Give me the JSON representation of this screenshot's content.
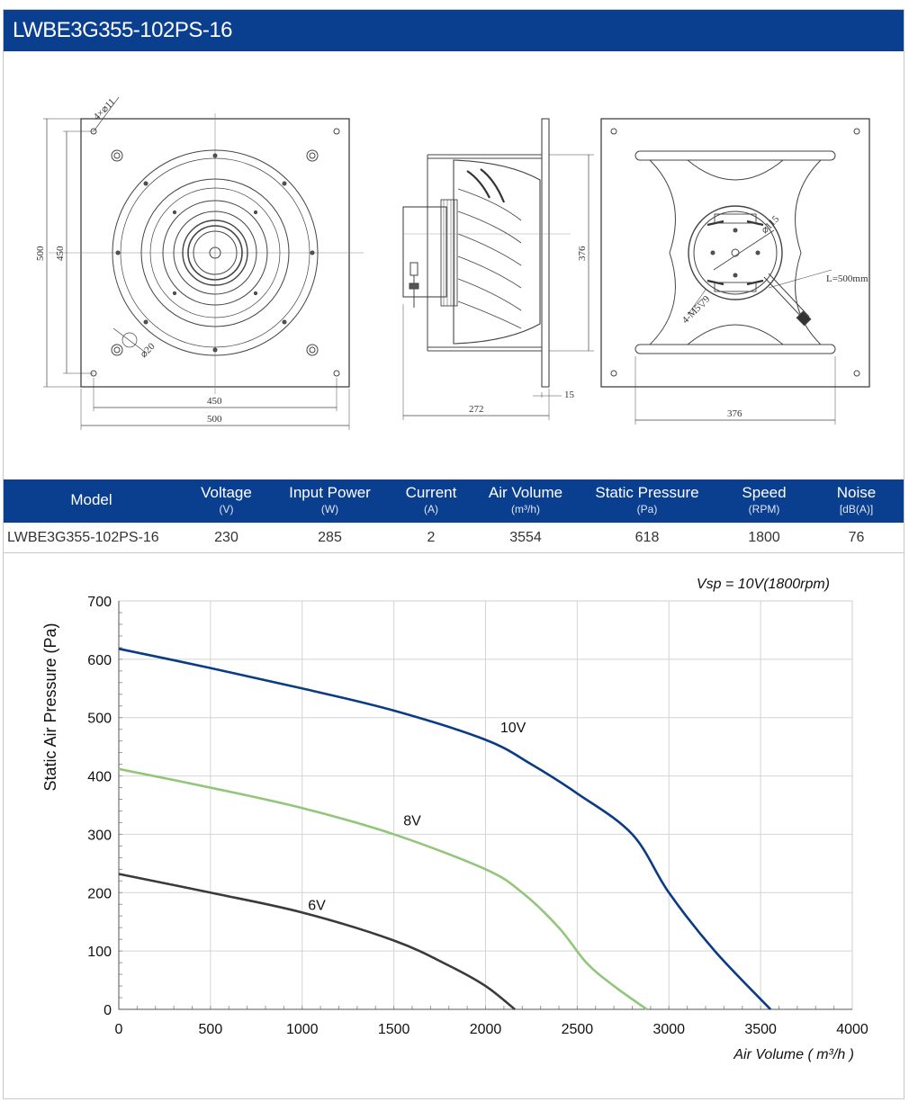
{
  "header": {
    "title": "LWBE3G355-102PS-16"
  },
  "drawing": {
    "front": {
      "hole_callout": "4×⌀11",
      "hub_callout": "⌀20",
      "dim_500_v": "500",
      "dim_450_v": "450",
      "dim_450_h": "450",
      "dim_500_h": "500"
    },
    "side": {
      "dim_272": "272",
      "dim_15": "15",
      "dim_376_v": "376"
    },
    "rear": {
      "dim_115": "⌀115",
      "cable": "L=500mm",
      "thread": "4-M5▽9",
      "dim_376_h": "376"
    }
  },
  "spec_table": {
    "headers": [
      {
        "label": "Model",
        "unit": ""
      },
      {
        "label": "Voltage",
        "unit": "(V)"
      },
      {
        "label": "Input Power",
        "unit": "(W)"
      },
      {
        "label": "Current",
        "unit": "(A)"
      },
      {
        "label": "Air Volume",
        "unit": "(m³/h)"
      },
      {
        "label": "Static Pressure",
        "unit": "(Pa)"
      },
      {
        "label": "Speed",
        "unit": "(RPM)"
      },
      {
        "label": "Noise",
        "unit": "[dB(A)]"
      }
    ],
    "row": [
      "LWBE3G355-102PS-16",
      "230",
      "285",
      "2",
      "3554",
      "618",
      "1800",
      "76"
    ]
  },
  "chart_data": {
    "type": "line",
    "title": "Vsp = 10V(1800rpm)",
    "xlabel": "Air Volume ( m³/h )",
    "ylabel": "Static Air Pressure  (Pa)",
    "xlim": [
      0,
      4000
    ],
    "ylim": [
      0,
      700
    ],
    "xticks": [
      0,
      500,
      1000,
      1500,
      2000,
      2500,
      3000,
      3500,
      4000
    ],
    "yticks": [
      0,
      100,
      200,
      300,
      400,
      500,
      600,
      700
    ],
    "grid": true,
    "series": [
      {
        "name": "10V",
        "color": "#0c3b86",
        "x": [
          0,
          500,
          1000,
          1500,
          2000,
          2250,
          2500,
          2800,
          3000,
          3250,
          3554
        ],
        "y": [
          618,
          585,
          550,
          512,
          462,
          420,
          370,
          300,
          200,
          100,
          0
        ]
      },
      {
        "name": "8V",
        "color": "#92c67a",
        "x": [
          0,
          500,
          1000,
          1500,
          2000,
          2200,
          2400,
          2550,
          2700,
          2880
        ],
        "y": [
          412,
          380,
          345,
          300,
          240,
          200,
          140,
          80,
          40,
          0
        ]
      },
      {
        "name": "6V",
        "color": "#3a3a3a",
        "x": [
          0,
          500,
          1000,
          1500,
          1800,
          2000,
          2160
        ],
        "y": [
          232,
          200,
          166,
          118,
          75,
          40,
          0
        ]
      }
    ]
  }
}
